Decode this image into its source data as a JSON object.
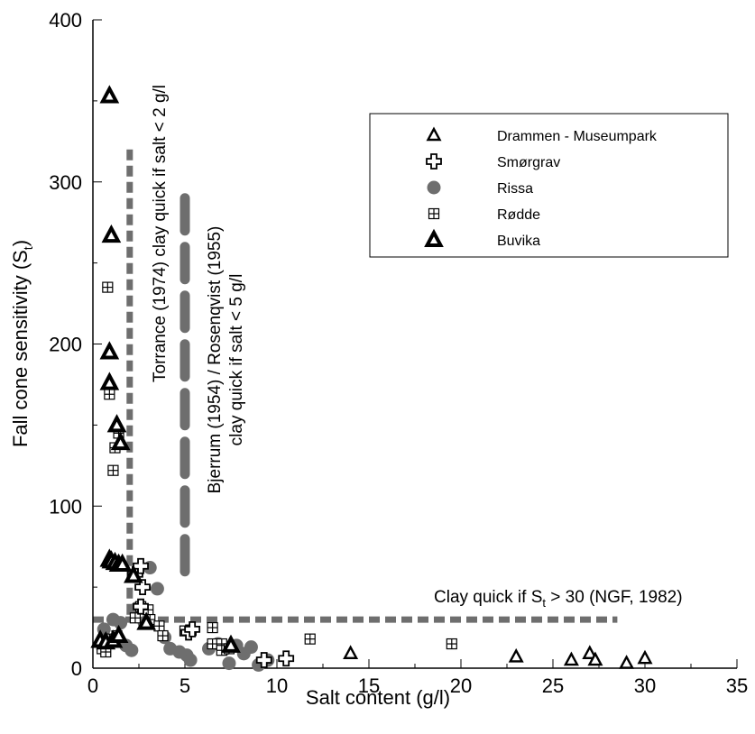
{
  "chart_data": {
    "type": "scatter",
    "xlabel": "Salt content (g/l)",
    "ylabel_main": "Fall cone sensitivity (S",
    "ylabel_sub": "t",
    "ylabel_close": ")",
    "xlim": [
      0,
      35
    ],
    "ylim": [
      0,
      400
    ],
    "x_ticks": [
      "0",
      "5",
      "10",
      "15",
      "20",
      "25",
      "30",
      "35"
    ],
    "y_ticks": [
      "0",
      "100",
      "200",
      "300",
      "400"
    ],
    "grid": false,
    "legend_position": "top-right",
    "colors": {
      "gray": "#6e6e6e",
      "black": "#000000"
    },
    "series": [
      {
        "name": "Drammen - Museumpark",
        "marker": "triangle-hollow",
        "points": [
          [
            14,
            9
          ],
          [
            23,
            7
          ],
          [
            26,
            5
          ],
          [
            27,
            9
          ],
          [
            27.3,
            5
          ],
          [
            29,
            3
          ],
          [
            30,
            6
          ]
        ]
      },
      {
        "name": "Smørgrav",
        "marker": "cross-hollow",
        "points": [
          [
            2.3,
            58
          ],
          [
            2.6,
            63
          ],
          [
            2.7,
            50
          ],
          [
            2.6,
            38
          ],
          [
            5.2,
            22
          ],
          [
            5.4,
            24
          ],
          [
            9.3,
            5
          ],
          [
            10.5,
            6
          ]
        ]
      },
      {
        "name": "Rissa",
        "marker": "circle-gray",
        "points": [
          [
            0.6,
            24
          ],
          [
            1.1,
            30
          ],
          [
            1.5,
            28
          ],
          [
            1.8,
            14
          ],
          [
            2.1,
            11
          ],
          [
            2.4,
            37
          ],
          [
            2.8,
            28
          ],
          [
            3.1,
            62
          ],
          [
            3.5,
            49
          ],
          [
            3.9,
            19
          ],
          [
            4.2,
            12
          ],
          [
            4.7,
            10
          ],
          [
            5.1,
            8
          ],
          [
            5.3,
            5
          ],
          [
            6.3,
            12
          ],
          [
            6.8,
            15
          ],
          [
            7.2,
            12
          ],
          [
            7.4,
            3
          ],
          [
            7.8,
            14
          ],
          [
            8.2,
            9
          ],
          [
            8.6,
            13
          ],
          [
            9.0,
            2
          ],
          [
            9.5,
            5
          ]
        ]
      },
      {
        "name": "Rødde",
        "marker": "square-plus",
        "points": [
          [
            0.8,
            235
          ],
          [
            0.9,
            169
          ],
          [
            1.1,
            122
          ],
          [
            1.2,
            136
          ],
          [
            1.4,
            145
          ],
          [
            0.5,
            12
          ],
          [
            0.7,
            10
          ],
          [
            0.9,
            18
          ],
          [
            1.3,
            20
          ],
          [
            2.3,
            31
          ],
          [
            2.6,
            38
          ],
          [
            3.0,
            36
          ],
          [
            3.1,
            30
          ],
          [
            3.6,
            26
          ],
          [
            3.8,
            20
          ],
          [
            5.0,
            23
          ],
          [
            6.5,
            25
          ],
          [
            6.5,
            15
          ],
          [
            7.0,
            15
          ],
          [
            7.0,
            11
          ],
          [
            7.4,
            12
          ],
          [
            11.8,
            18
          ],
          [
            19.5,
            15
          ]
        ]
      },
      {
        "name": "Buvika",
        "marker": "triangle-solid",
        "points": [
          [
            0.9,
            353
          ],
          [
            1.0,
            267
          ],
          [
            0.9,
            195
          ],
          [
            0.9,
            176
          ],
          [
            1.3,
            150
          ],
          [
            1.5,
            139
          ],
          [
            0.9,
            67
          ],
          [
            1.0,
            66
          ],
          [
            1.2,
            65
          ],
          [
            1.4,
            64
          ],
          [
            1.6,
            64
          ],
          [
            2.2,
            57
          ],
          [
            0.4,
            17
          ],
          [
            0.7,
            16
          ],
          [
            1.1,
            17
          ],
          [
            1.4,
            20
          ],
          [
            2.9,
            28
          ],
          [
            7.5,
            14
          ]
        ]
      }
    ],
    "reference_lines": [
      {
        "orientation": "vertical",
        "x": 2,
        "y_from": 30,
        "y_to": 320,
        "color": "#6e6e6e",
        "dash": "small"
      },
      {
        "orientation": "vertical",
        "x": 5,
        "y_from": 50,
        "y_to": 290,
        "color": "#6e6e6e",
        "dash": "large"
      },
      {
        "orientation": "horizontal",
        "y": 30,
        "x_from": 0,
        "x_to": 28.5,
        "color": "#6e6e6e",
        "dash": "small"
      }
    ],
    "annotations": {
      "torrance": "Torrance (1974) clay quick if salt < 2 g/l",
      "bjerrum_line1": "Bjerrum (1954) / Rosenqvist (1955)",
      "bjerrum_line2": "clay quick if salt < 5 g/l",
      "ngf_prefix": "Clay quick if S",
      "ngf_sub": "t",
      "ngf_suffix": " > 30 (NGF, 1982)"
    }
  }
}
